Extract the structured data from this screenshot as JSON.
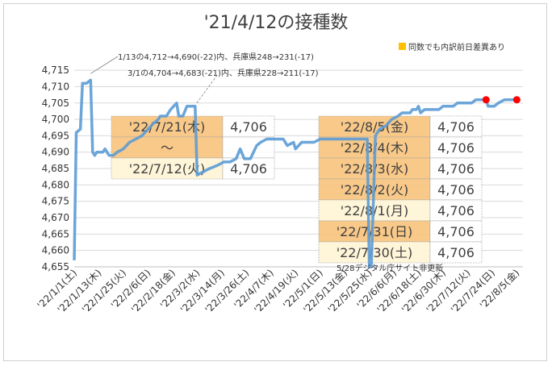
{
  "chart_data": {
    "type": "line",
    "title": "'21/4/12の接種数",
    "legend": {
      "label": "同数でも内訳前日差異あり",
      "color": "#ffc000",
      "placement": "top-right"
    },
    "ylim": [
      4655,
      4717
    ],
    "yticks": [
      "4,655",
      "4,660",
      "4,665",
      "4,670",
      "4,675",
      "4,680",
      "4,685",
      "4,690",
      "4,695",
      "4,700",
      "4,705",
      "4,710",
      "4,715"
    ],
    "xlim": [
      "2022-01-01",
      "2022-08-08"
    ],
    "xticks": [
      {
        "date": "2022-01-01",
        "label": "'22/1/1(土)"
      },
      {
        "date": "2022-01-13",
        "label": "'22/1/13(木)"
      },
      {
        "date": "2022-01-25",
        "label": "'22/1/25(火)"
      },
      {
        "date": "2022-02-06",
        "label": "'22/2/6(日)"
      },
      {
        "date": "2022-02-18",
        "label": "'22/2/18(金)"
      },
      {
        "date": "2022-03-02",
        "label": "'22/3/2(水)"
      },
      {
        "date": "2022-03-14",
        "label": "'22/3/14(月)"
      },
      {
        "date": "2022-03-26",
        "label": "'22/3/26(土)"
      },
      {
        "date": "2022-04-07",
        "label": "'22/4/7(木)"
      },
      {
        "date": "2022-04-19",
        "label": "'22/4/19(火)"
      },
      {
        "date": "2022-05-01",
        "label": "'22/5/1(日)"
      },
      {
        "date": "2022-05-13",
        "label": "'22/5/13(金)"
      },
      {
        "date": "2022-05-25",
        "label": "'22/5/25(水)"
      },
      {
        "date": "2022-06-06",
        "label": "'22/6/6(月)"
      },
      {
        "date": "2022-06-18",
        "label": "'22/6/18(土)"
      },
      {
        "date": "2022-06-30",
        "label": "'22/6/30(木)"
      },
      {
        "date": "2022-07-12",
        "label": "'22/7/12(火)"
      },
      {
        "date": "2022-07-24",
        "label": "'22/7/24(日)"
      },
      {
        "date": "2022-08-05",
        "label": "'22/8/5(金)"
      }
    ],
    "series": [
      {
        "color": "#5b9bd5",
        "points": [
          [
            "2022-01-01",
            4657
          ],
          [
            "2022-01-02",
            4696
          ],
          [
            "2022-01-04",
            4697
          ],
          [
            "2022-01-05",
            4711
          ],
          [
            "2022-01-07",
            4711
          ],
          [
            "2022-01-09",
            4712
          ],
          [
            "2022-01-10",
            4690
          ],
          [
            "2022-01-11",
            4689
          ],
          [
            "2022-01-12",
            4690
          ],
          [
            "2022-01-15",
            4690
          ],
          [
            "2022-01-16",
            4691
          ],
          [
            "2022-01-18",
            4689
          ],
          [
            "2022-01-20",
            4689
          ],
          [
            "2022-01-22",
            4690
          ],
          [
            "2022-01-25",
            4691
          ],
          [
            "2022-01-28",
            4693
          ],
          [
            "2022-01-31",
            4694
          ],
          [
            "2022-02-03",
            4695
          ],
          [
            "2022-02-06",
            4697
          ],
          [
            "2022-02-09",
            4699
          ],
          [
            "2022-02-11",
            4700
          ],
          [
            "2022-02-12",
            4701
          ],
          [
            "2022-02-15",
            4701
          ],
          [
            "2022-02-17",
            4703
          ],
          [
            "2022-02-20",
            4705
          ],
          [
            "2022-02-21",
            4701
          ],
          [
            "2022-02-23",
            4701
          ],
          [
            "2022-02-25",
            4704
          ],
          [
            "2022-03-01",
            4704
          ],
          [
            "2022-03-02",
            4683
          ],
          [
            "2022-03-05",
            4684
          ],
          [
            "2022-03-08",
            4685
          ],
          [
            "2022-03-12",
            4686
          ],
          [
            "2022-03-15",
            4687
          ],
          [
            "2022-03-18",
            4687
          ],
          [
            "2022-03-21",
            4688
          ],
          [
            "2022-03-23",
            4691
          ],
          [
            "2022-03-25",
            4688
          ],
          [
            "2022-03-28",
            4688
          ],
          [
            "2022-03-31",
            4692
          ],
          [
            "2022-04-02",
            4693
          ],
          [
            "2022-04-05",
            4694
          ],
          [
            "2022-04-10",
            4694
          ],
          [
            "2022-04-13",
            4694
          ],
          [
            "2022-04-15",
            4692
          ],
          [
            "2022-04-18",
            4693
          ],
          [
            "2022-04-19",
            4691
          ],
          [
            "2022-04-22",
            4693
          ],
          [
            "2022-04-28",
            4693
          ],
          [
            "2022-05-01",
            4694
          ],
          [
            "2022-05-13",
            4694
          ],
          [
            "2022-05-24",
            4694
          ],
          [
            "2022-05-25",
            4655
          ],
          [
            "2022-05-26",
            4655
          ],
          [
            "2022-05-28",
            4695
          ],
          [
            "2022-05-30",
            4697
          ],
          [
            "2022-06-02",
            4698
          ],
          [
            "2022-06-05",
            4700
          ],
          [
            "2022-06-08",
            4701
          ],
          [
            "2022-06-10",
            4702
          ],
          [
            "2022-06-14",
            4702
          ],
          [
            "2022-06-15",
            4703
          ],
          [
            "2022-06-17",
            4703
          ],
          [
            "2022-06-18",
            4704
          ],
          [
            "2022-06-19",
            4702
          ],
          [
            "2022-06-21",
            4703
          ],
          [
            "2022-06-28",
            4703
          ],
          [
            "2022-06-30",
            4704
          ],
          [
            "2022-07-05",
            4704
          ],
          [
            "2022-07-07",
            4705
          ],
          [
            "2022-07-14",
            4705
          ],
          [
            "2022-07-16",
            4706
          ],
          [
            "2022-07-21",
            4706
          ],
          [
            "2022-07-22",
            4704
          ],
          [
            "2022-07-25",
            4704
          ],
          [
            "2022-07-27",
            4705
          ],
          [
            "2022-07-30",
            4706
          ],
          [
            "2022-08-05",
            4706
          ]
        ]
      }
    ],
    "markers": [
      {
        "date": "2022-07-21",
        "value": 4706,
        "color": "#ff0000"
      },
      {
        "date": "2022-08-05",
        "value": 4706,
        "color": "#ff0000"
      }
    ],
    "annotations": [
      {
        "text": "1/13の4,712→4,690(-22)内、兵庫県248→231(-17)",
        "date": "2022-01-13"
      },
      {
        "text": "3/1の4,704→4,683(-21)内、兵庫県228→211(-17)",
        "date": "2022-03-01"
      },
      {
        "text": "5/28デジタル庁サイト非更新",
        "date": "2022-05-28"
      }
    ],
    "value_tables": [
      {
        "rows": [
          {
            "date": "'22/7/21(木)",
            "value": "4,706",
            "highlight": true
          },
          {
            "date": "～",
            "value": "",
            "highlight": true
          },
          {
            "date": "'22/7/12(火)",
            "value": "4,706",
            "highlight": false
          }
        ]
      },
      {
        "rows": [
          {
            "date": "'22/8/5(金)",
            "value": "4,706",
            "highlight": true
          },
          {
            "date": "'22/8/4(木)",
            "value": "4,706",
            "highlight": true
          },
          {
            "date": "'22/8/3(水)",
            "value": "4,706",
            "highlight": true
          },
          {
            "date": "'22/8/2(火)",
            "value": "4,706",
            "highlight": true
          },
          {
            "date": "'22/8/1(月)",
            "value": "4,706",
            "highlight": false
          },
          {
            "date": "'22/7/31(日)",
            "value": "4,706",
            "highlight": true
          },
          {
            "date": "'22/7/30(土)",
            "value": "4,706",
            "highlight": false
          }
        ]
      }
    ],
    "colors": {
      "highlight_fill": "#f9c47f",
      "plain_fill": "#fff4d6",
      "grid": "#d9d9d9",
      "axis_text": "#333333"
    },
    "grid": true
  }
}
